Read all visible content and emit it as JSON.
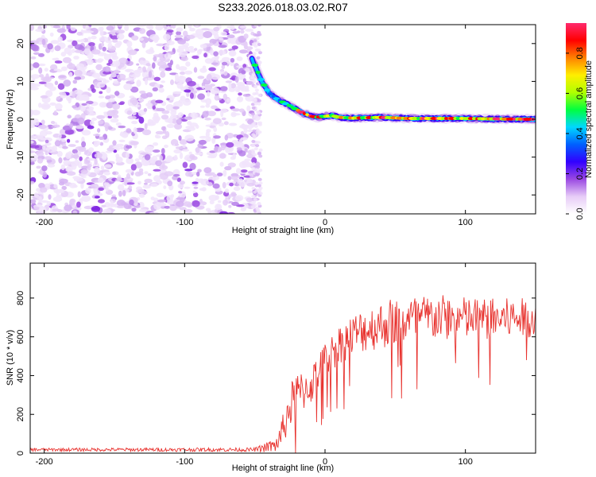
{
  "title": "S233.2026.018.03.02.R07",
  "chart_data": [
    {
      "id": "spectrogram",
      "type": "heatmap",
      "xlabel": "Height of straight line (km)",
      "ylabel": "Frequency (Hz)",
      "xlim": [
        -210,
        150
      ],
      "ylim": [
        -25,
        25
      ],
      "xticks": [
        -200,
        -100,
        0,
        100
      ],
      "yticks": [
        -20,
        -10,
        0,
        10,
        20
      ],
      "noise_region_x": [
        -210,
        -48
      ],
      "signal_track": {
        "x": [
          -52,
          -45,
          -40,
          -35,
          -30,
          -25,
          -20,
          -15,
          -10,
          -5,
          0,
          5,
          10,
          20,
          30,
          40,
          60,
          80,
          100,
          120,
          150
        ],
        "frequency": [
          16,
          10,
          7,
          5.5,
          4.5,
          3.5,
          2.5,
          1.5,
          0.8,
          0.5,
          0.8,
          1.0,
          0.5,
          0.3,
          0.4,
          0.5,
          0.2,
          0.2,
          0.2,
          0.1,
          0.0
        ]
      },
      "colorbar": {
        "label": "Normalized spectral amplitude",
        "range": [
          0,
          0.95
        ],
        "ticks": [
          0.0,
          0.2,
          0.4,
          0.6,
          0.8
        ],
        "tick_labels": [
          "0.0",
          "0.2",
          "0.4",
          "0.6",
          "0.8"
        ],
        "colors": [
          "#ffffff",
          "#e7ccf7",
          "#9a48e2",
          "#3200ff",
          "#0060ff",
          "#00d8ff",
          "#00ff40",
          "#b0ff00",
          "#ffee00",
          "#ff8000",
          "#ff0000",
          "#ff2a6e"
        ]
      }
    },
    {
      "id": "snr",
      "type": "line",
      "xlabel": "Height of straight line (km)",
      "ylabel": "SNR (10 * v/v)",
      "xlim": [
        -210,
        150
      ],
      "ylim": [
        0,
        980
      ],
      "xticks": [
        -200,
        -100,
        0,
        100
      ],
      "yticks": [
        0,
        200,
        400,
        600,
        800
      ],
      "color": "#e8332f",
      "trend": {
        "x": [
          -210,
          -50,
          -35,
          -30,
          -25,
          -20,
          -10,
          -5,
          0,
          10,
          20,
          30,
          50,
          80,
          110,
          150
        ],
        "y": [
          18,
          18,
          40,
          120,
          240,
          300,
          350,
          420,
          480,
          560,
          610,
          640,
          680,
          700,
          690,
          700
        ]
      },
      "noise_amplitude": {
        "x": [
          -210,
          -50,
          -35,
          -25,
          -10,
          0,
          20,
          50,
          150
        ],
        "y": [
          8,
          10,
          40,
          120,
          100,
          90,
          110,
          130,
          100
        ]
      }
    }
  ]
}
